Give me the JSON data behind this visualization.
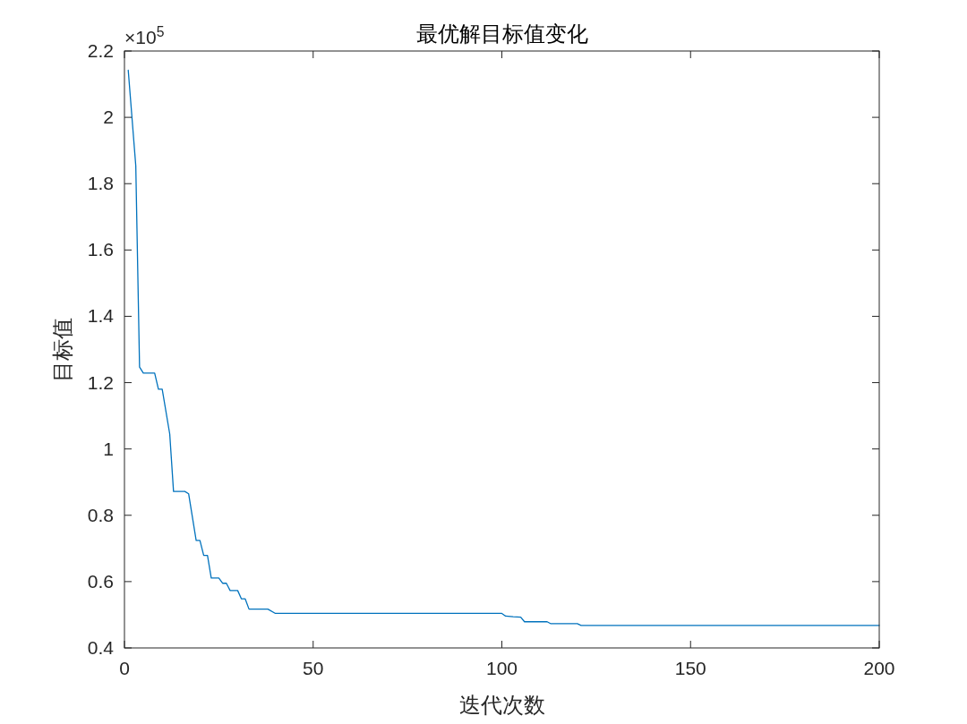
{
  "chart_data": {
    "type": "line",
    "title": "最优解目标值变化",
    "xlabel": "迭代次数",
    "ylabel": "目标值",
    "annotations": [
      "×10$^{5}$"
    ],
    "x": [
      1,
      3,
      4,
      5,
      8,
      9,
      10,
      12,
      13,
      16,
      17,
      19,
      20,
      21,
      22,
      23,
      25,
      26,
      27,
      28,
      30,
      31,
      32,
      33,
      38,
      40,
      100,
      101,
      103,
      105,
      106,
      112,
      113,
      120,
      121,
      200
    ],
    "values": [
      2.142,
      1.854,
      1.247,
      1.229,
      1.229,
      1.18,
      1.18,
      1.045,
      0.872,
      0.872,
      0.865,
      0.724,
      0.724,
      0.679,
      0.679,
      0.611,
      0.611,
      0.595,
      0.595,
      0.573,
      0.573,
      0.548,
      0.548,
      0.517,
      0.517,
      0.504,
      0.504,
      0.496,
      0.494,
      0.493,
      0.479,
      0.479,
      0.473,
      0.473,
      0.468,
      0.468
    ],
    "color": "#0072bd",
    "xlim": [
      0,
      200
    ],
    "ylim": [
      0.4,
      2.2
    ],
    "xticks": [
      0,
      50,
      100,
      150,
      200
    ],
    "yticks": [
      0.4,
      0.6,
      0.8,
      1,
      1.2,
      1.4,
      1.6,
      1.8,
      2,
      2.2
    ]
  }
}
